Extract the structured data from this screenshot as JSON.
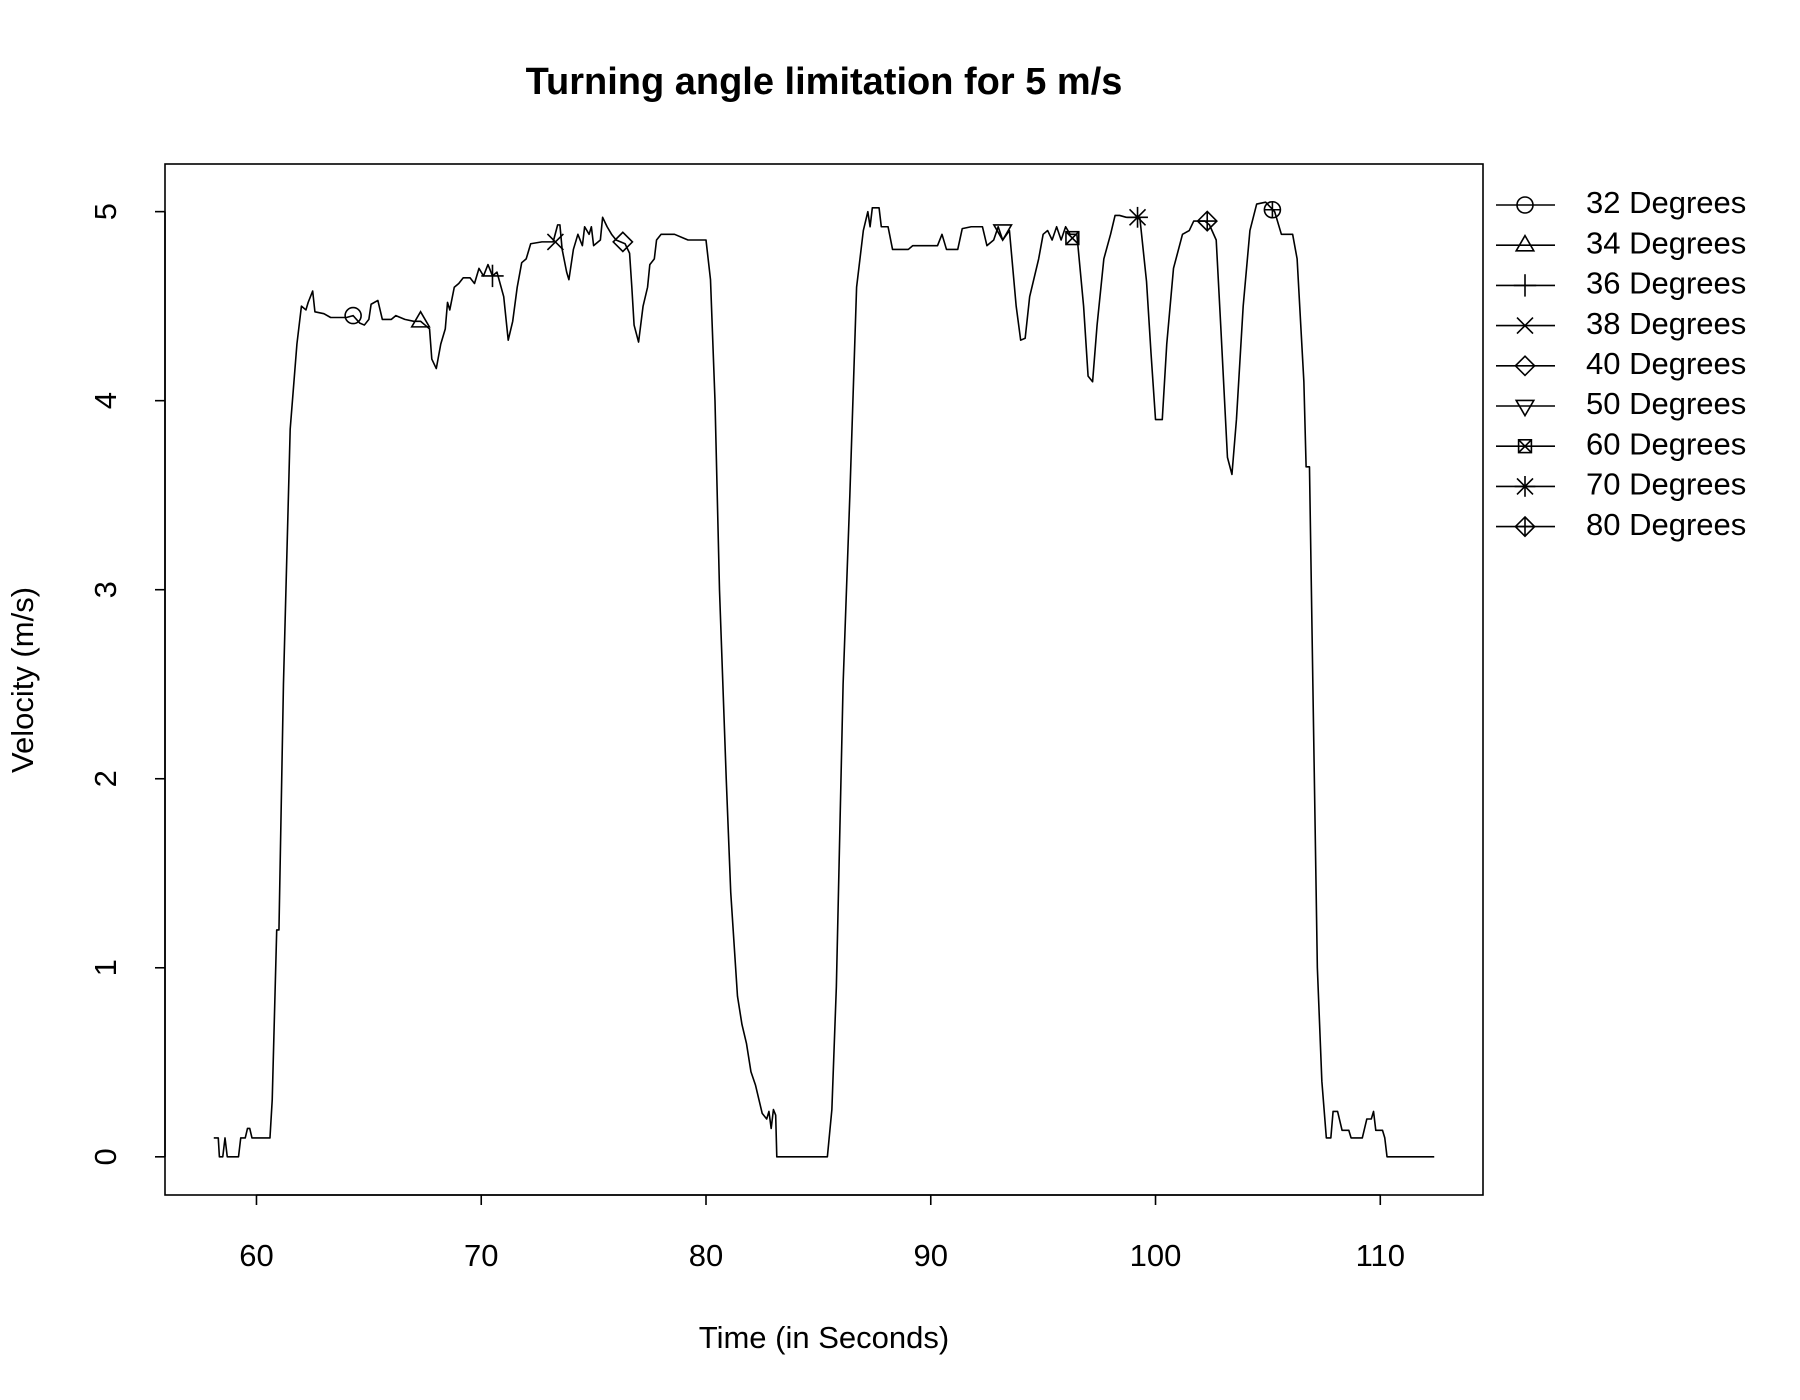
{
  "chart_data": {
    "type": "line",
    "title": "Turning angle limitation for 5 m/s",
    "x_label": "Time (in Seconds)",
    "y_label": "Velocity (m/s)",
    "xlim": [
      55.93,
      114.57
    ],
    "ylim": [
      -0.202,
      5.252
    ],
    "xticks": [
      60,
      70,
      80,
      90,
      100,
      110
    ],
    "yticks": [
      0,
      1,
      2,
      3,
      4,
      5
    ],
    "grid": false,
    "legend_position": "outside-right",
    "series": [
      {
        "color": "#000000",
        "x": [
          58.1,
          58.3,
          58.35,
          58.5,
          58.6,
          58.7,
          59.2,
          59.3,
          59.5,
          59.6,
          59.7,
          59.8,
          60.6,
          60.7,
          60.9,
          61.0,
          61.2,
          61.5,
          61.6,
          61.8,
          62.0,
          62.2,
          62.3,
          62.5,
          62.6,
          63.0,
          63.3,
          64.0,
          64.3,
          64.6,
          64.8,
          65.0,
          65.1,
          65.4,
          65.6,
          66.0,
          66.2,
          66.6,
          67.0,
          67.3,
          67.5,
          67.7,
          67.8,
          68.0,
          68.2,
          68.4,
          68.5,
          68.6,
          68.8,
          69.0,
          69.2,
          69.5,
          69.7,
          69.9,
          70.1,
          70.3,
          70.5,
          70.7,
          71.0,
          71.2,
          71.4,
          71.6,
          71.8,
          72.0,
          72.2,
          72.7,
          73.2,
          73.4,
          73.5,
          73.6,
          73.8,
          73.9,
          74.1,
          74.3,
          74.5,
          74.6,
          74.8,
          74.9,
          75.0,
          75.3,
          75.4,
          75.6,
          75.8,
          76.0,
          76.4,
          76.6,
          76.7,
          76.8,
          77.0,
          77.2,
          77.4,
          77.5,
          77.7,
          77.8,
          78.0,
          78.6,
          79.0,
          79.2,
          80.0,
          80.2,
          80.4,
          80.6,
          80.9,
          81.1,
          81.4,
          81.6,
          81.8,
          82.0,
          82.2,
          82.5,
          82.7,
          82.8,
          82.9,
          83.0,
          83.1,
          83.15,
          85.4,
          85.6,
          85.8,
          86.1,
          86.4,
          86.7,
          87.0,
          87.2,
          87.3,
          87.4,
          87.7,
          87.8,
          88.1,
          88.3,
          88.6,
          89.0,
          89.2,
          90.3,
          90.5,
          90.7,
          91.2,
          91.4,
          91.8,
          92.3,
          92.5,
          92.8,
          93.0,
          93.2,
          93.5,
          93.8,
          94.0,
          94.2,
          94.4,
          94.8,
          95.0,
          95.2,
          95.4,
          95.6,
          95.8,
          96.0,
          96.2,
          96.5,
          96.8,
          97.0,
          97.2,
          97.4,
          97.7,
          98.0,
          98.2,
          98.4,
          98.7,
          99.3,
          99.6,
          99.8,
          100.0,
          100.3,
          100.5,
          100.8,
          101.2,
          101.5,
          101.7,
          102.2,
          102.4,
          102.7,
          102.9,
          103.2,
          103.4,
          103.6,
          103.9,
          104.2,
          104.5,
          104.9,
          105.3,
          105.6,
          106.1,
          106.3,
          106.6,
          106.7,
          106.85,
          107.0,
          107.2,
          107.4,
          107.6,
          107.8,
          107.9,
          108.1,
          108.3,
          108.6,
          108.7,
          109.2,
          109.4,
          109.6,
          109.7,
          109.8,
          110.1,
          110.2,
          110.3,
          112.4
        ],
        "values": [
          0.1,
          0.1,
          0,
          0,
          0.1,
          0,
          0,
          0.1,
          0.1,
          0.15,
          0.15,
          0.1,
          0.1,
          0.3,
          1.2,
          1.2,
          2.5,
          3.85,
          4.0,
          4.3,
          4.5,
          4.48,
          4.52,
          4.58,
          4.47,
          4.46,
          4.44,
          4.44,
          4.45,
          4.41,
          4.4,
          4.43,
          4.51,
          4.53,
          4.43,
          4.43,
          4.45,
          4.43,
          4.42,
          4.42,
          4.4,
          4.38,
          4.22,
          4.17,
          4.3,
          4.38,
          4.52,
          4.48,
          4.6,
          4.62,
          4.65,
          4.65,
          4.62,
          4.7,
          4.66,
          4.72,
          4.66,
          4.68,
          4.55,
          4.32,
          4.42,
          4.6,
          4.73,
          4.75,
          4.83,
          4.84,
          4.84,
          4.93,
          4.93,
          4.8,
          4.68,
          4.64,
          4.8,
          4.88,
          4.82,
          4.92,
          4.88,
          4.92,
          4.82,
          4.85,
          4.97,
          4.92,
          4.88,
          4.85,
          4.83,
          4.78,
          4.6,
          4.4,
          4.31,
          4.5,
          4.6,
          4.72,
          4.75,
          4.85,
          4.88,
          4.88,
          4.86,
          4.85,
          4.85,
          4.64,
          4.0,
          3.0,
          2.0,
          1.4,
          0.85,
          0.7,
          0.6,
          0.45,
          0.38,
          0.23,
          0.2,
          0.24,
          0.15,
          0.25,
          0.22,
          0,
          0,
          0.25,
          0.9,
          2.5,
          3.5,
          4.6,
          4.9,
          5.0,
          4.92,
          5.02,
          5.02,
          4.92,
          4.92,
          4.8,
          4.8,
          4.8,
          4.82,
          4.82,
          4.88,
          4.8,
          4.8,
          4.91,
          4.92,
          4.92,
          4.82,
          4.85,
          4.92,
          4.85,
          4.9,
          4.5,
          4.32,
          4.33,
          4.55,
          4.75,
          4.88,
          4.9,
          4.85,
          4.92,
          4.85,
          4.92,
          4.88,
          4.88,
          4.5,
          4.13,
          4.1,
          4.4,
          4.75,
          4.88,
          4.98,
          4.98,
          4.97,
          4.97,
          4.63,
          4.25,
          3.9,
          3.9,
          4.3,
          4.7,
          4.88,
          4.9,
          4.95,
          4.95,
          4.93,
          4.85,
          4.4,
          3.7,
          3.61,
          3.9,
          4.5,
          4.9,
          5.04,
          5.05,
          5.0,
          4.88,
          4.88,
          4.75,
          4.1,
          3.65,
          3.65,
          2.5,
          1.0,
          0.4,
          0.1,
          0.1,
          0.24,
          0.24,
          0.14,
          0.14,
          0.1,
          0.1,
          0.2,
          0.2,
          0.24,
          0.14,
          0.14,
          0.1,
          0,
          0
        ]
      },
      {
        "name": "32 Degrees",
        "marker": "circle",
        "color": "#000000",
        "x": [
          64.3
        ],
        "values": [
          4.45
        ]
      },
      {
        "name": "34 Degrees",
        "marker": "triangle",
        "color": "#000000",
        "x": [
          67.3
        ],
        "values": [
          4.42
        ]
      },
      {
        "name": "36 Degrees",
        "marker": "plus",
        "color": "#000000",
        "x": [
          70.5
        ],
        "values": [
          4.66
        ]
      },
      {
        "name": "38 Degrees",
        "marker": "x",
        "color": "#000000",
        "x": [
          73.3
        ],
        "values": [
          4.84
        ]
      },
      {
        "name": "40 Degrees",
        "marker": "diamond",
        "color": "#000000",
        "x": [
          76.3
        ],
        "values": [
          4.84
        ]
      },
      {
        "name": "50 Degrees",
        "marker": "triangle-down",
        "color": "#000000",
        "x": [
          93.2
        ],
        "values": [
          4.9
        ]
      },
      {
        "name": "60 Degrees",
        "marker": "square-x",
        "color": "#000000",
        "x": [
          96.3
        ],
        "values": [
          4.86
        ]
      },
      {
        "name": "70 Degrees",
        "marker": "asterisk",
        "color": "#000000",
        "x": [
          99.2
        ],
        "values": [
          4.97
        ]
      },
      {
        "name": "80 Degrees",
        "marker": "diamond-plus",
        "color": "#000000",
        "x": [
          102.3
        ],
        "values": [
          4.95
        ]
      },
      {
        "marker": "circle-plus",
        "color": "#000000",
        "x": [
          105.2
        ],
        "values": [
          5.01
        ]
      }
    ]
  }
}
